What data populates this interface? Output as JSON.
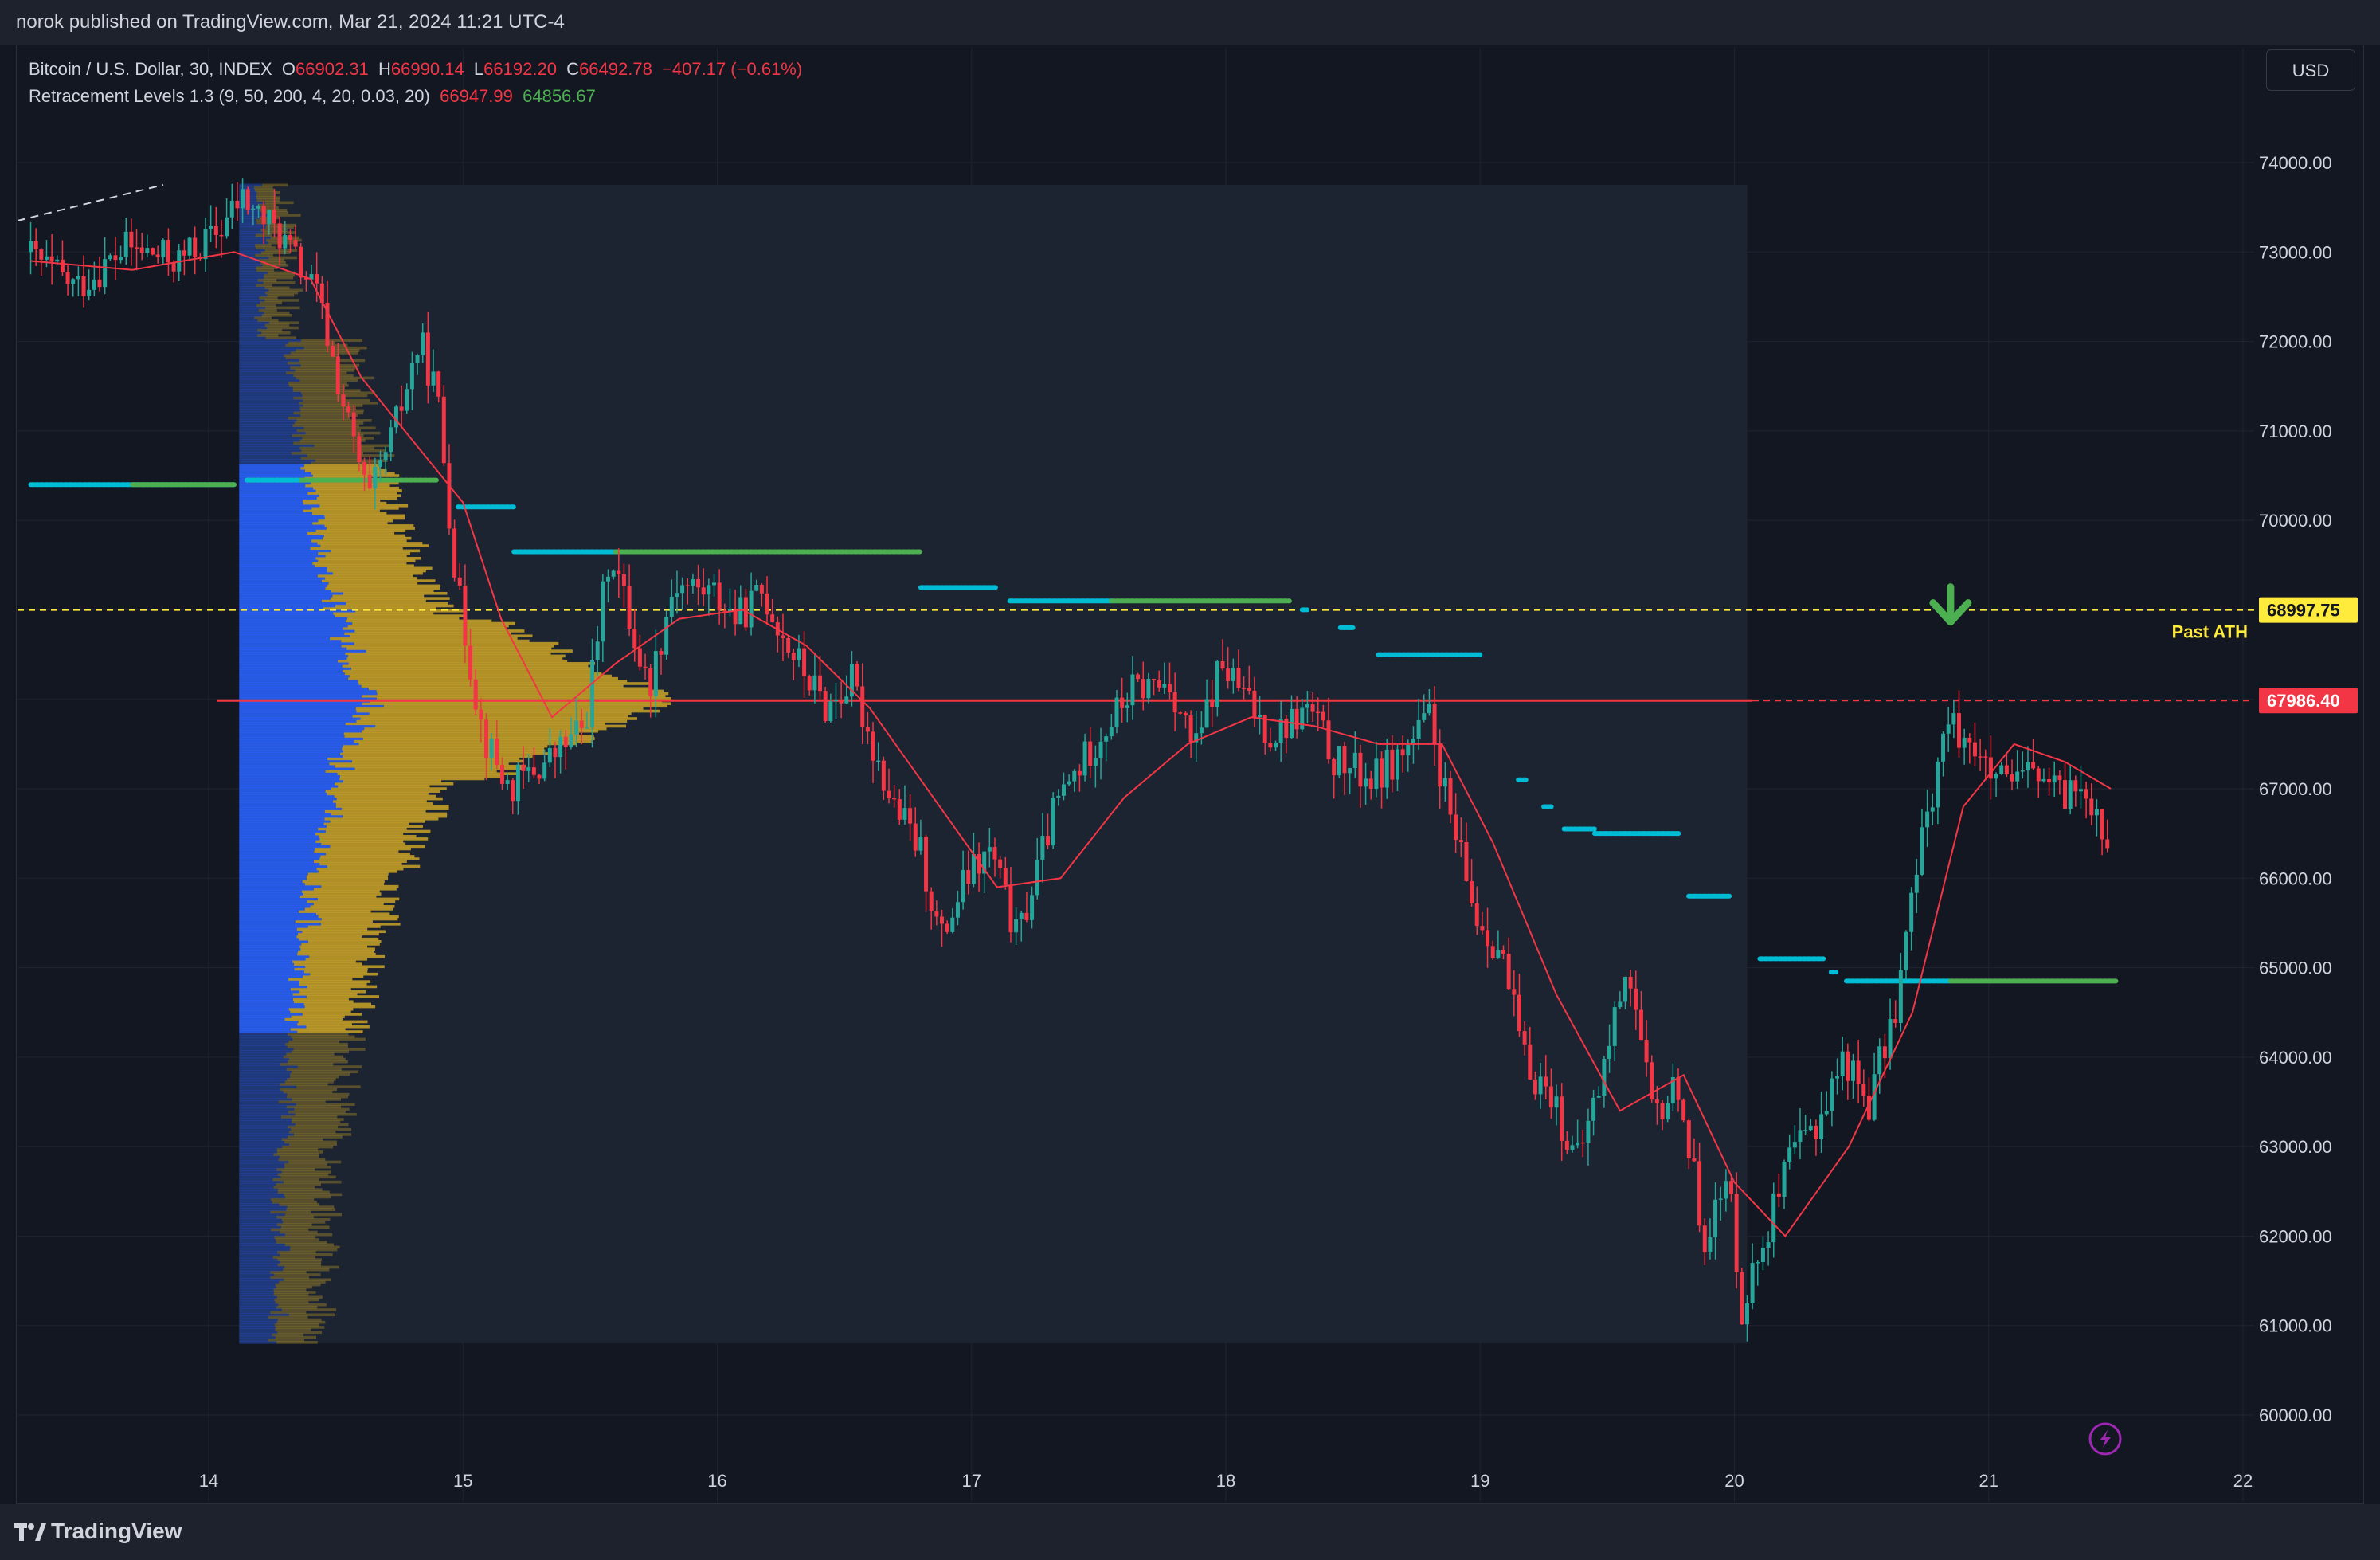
{
  "header": {
    "published": "norok published on TradingView.com, Mar 21, 2024 11:21 UTC-4"
  },
  "legend": {
    "symbol": "Bitcoin / U.S. Dollar, 30, INDEX",
    "o_label": "O",
    "o_value": "66902.31",
    "h_label": "H",
    "h_value": "66990.14",
    "l_label": "L",
    "l_value": "66192.20",
    "c_label": "C",
    "c_value": "66492.78",
    "change": "−407.17 (−0.61%)",
    "indicator": "Retracement Levels 1.3 (9, 50, 200, 4, 20, 0.03, 20)",
    "ind_value_1": "66947.99",
    "ind_value_2": "64856.67"
  },
  "currency_button": "USD",
  "footer": {
    "brand": "TradingView"
  },
  "colors": {
    "up": "#26a69a",
    "down": "#f23645",
    "ma": "#f23645",
    "profile_blue": "#2962ff",
    "profile_gold": "#c9a227",
    "dots_cyan": "#00bcd4",
    "dots_green": "#4caf50",
    "ath_line": "#ffeb3b",
    "arrow": "#4caf50"
  },
  "chart_data": {
    "type": "candlestick",
    "ylim": [
      59600,
      74800
    ],
    "xlim": [
      13.3,
      22.3
    ],
    "y_ticks": [
      "74000.00",
      "73000.00",
      "72000.00",
      "71000.00",
      "70000.00",
      "69000.00",
      "68000.00",
      "67000.00",
      "66000.00",
      "65000.00",
      "64000.00",
      "63000.00",
      "62000.00",
      "61000.00",
      "60000.00"
    ],
    "x_ticks": [
      "14",
      "15",
      "16",
      "17",
      "18",
      "19",
      "20",
      "21",
      "22"
    ],
    "price_path": [
      [
        13.3,
        73000
      ],
      [
        13.5,
        72600
      ],
      [
        13.7,
        73050
      ],
      [
        13.9,
        72900
      ],
      [
        14.05,
        73200
      ],
      [
        14.15,
        73600
      ],
      [
        14.3,
        73200
      ],
      [
        14.45,
        72500
      ],
      [
        14.55,
        71300
      ],
      [
        14.65,
        70200
      ],
      [
        14.75,
        71000
      ],
      [
        14.85,
        72000
      ],
      [
        14.92,
        71400
      ],
      [
        15.0,
        69200
      ],
      [
        15.1,
        67600
      ],
      [
        15.2,
        67000
      ],
      [
        15.35,
        67300
      ],
      [
        15.5,
        67700
      ],
      [
        15.6,
        69700
      ],
      [
        15.75,
        68100
      ],
      [
        15.85,
        69300
      ],
      [
        16.0,
        69200
      ],
      [
        16.1,
        68900
      ],
      [
        16.2,
        69200
      ],
      [
        16.3,
        68600
      ],
      [
        16.45,
        67900
      ],
      [
        16.55,
        68200
      ],
      [
        16.7,
        66900
      ],
      [
        16.82,
        66300
      ],
      [
        16.9,
        65300
      ],
      [
        17.0,
        66000
      ],
      [
        17.1,
        66300
      ],
      [
        17.2,
        65300
      ],
      [
        17.35,
        66800
      ],
      [
        17.5,
        67500
      ],
      [
        17.65,
        68100
      ],
      [
        17.8,
        68200
      ],
      [
        17.9,
        67400
      ],
      [
        18.0,
        68400
      ],
      [
        18.1,
        68000
      ],
      [
        18.2,
        67600
      ],
      [
        18.35,
        67900
      ],
      [
        18.45,
        67300
      ],
      [
        18.6,
        67100
      ],
      [
        18.75,
        67500
      ],
      [
        18.82,
        67800
      ],
      [
        18.9,
        66700
      ],
      [
        19.0,
        65600
      ],
      [
        19.1,
        65200
      ],
      [
        19.2,
        63900
      ],
      [
        19.3,
        63600
      ],
      [
        19.4,
        62800
      ],
      [
        19.5,
        63800
      ],
      [
        19.6,
        65100
      ],
      [
        19.7,
        63300
      ],
      [
        19.8,
        63700
      ],
      [
        19.9,
        62000
      ],
      [
        20.0,
        62600
      ],
      [
        20.05,
        61200
      ],
      [
        20.15,
        62100
      ],
      [
        20.25,
        62900
      ],
      [
        20.35,
        63300
      ],
      [
        20.45,
        64000
      ],
      [
        20.55,
        63500
      ],
      [
        20.65,
        64500
      ],
      [
        20.75,
        66300
      ],
      [
        20.85,
        67700
      ],
      [
        20.95,
        67600
      ],
      [
        21.0,
        67200
      ],
      [
        21.1,
        67000
      ],
      [
        21.2,
        67200
      ],
      [
        21.3,
        66900
      ],
      [
        21.4,
        67100
      ],
      [
        21.48,
        66500
      ]
    ],
    "ma_path": [
      [
        13.3,
        72900
      ],
      [
        13.7,
        72800
      ],
      [
        14.1,
        73000
      ],
      [
        14.4,
        72700
      ],
      [
        14.6,
        71600
      ],
      [
        14.8,
        70900
      ],
      [
        15.0,
        70200
      ],
      [
        15.15,
        68900
      ],
      [
        15.35,
        67800
      ],
      [
        15.6,
        68400
      ],
      [
        15.85,
        68900
      ],
      [
        16.1,
        69000
      ],
      [
        16.35,
        68600
      ],
      [
        16.6,
        67900
      ],
      [
        16.85,
        66900
      ],
      [
        17.1,
        65900
      ],
      [
        17.35,
        66000
      ],
      [
        17.6,
        66900
      ],
      [
        17.85,
        67500
      ],
      [
        18.1,
        67800
      ],
      [
        18.35,
        67700
      ],
      [
        18.6,
        67500
      ],
      [
        18.85,
        67500
      ],
      [
        19.05,
        66400
      ],
      [
        19.3,
        64700
      ],
      [
        19.55,
        63400
      ],
      [
        19.8,
        63800
      ],
      [
        20.0,
        62600
      ],
      [
        20.2,
        62000
      ],
      [
        20.45,
        63000
      ],
      [
        20.7,
        64500
      ],
      [
        20.9,
        66800
      ],
      [
        21.1,
        67500
      ],
      [
        21.3,
        67300
      ],
      [
        21.48,
        67000
      ]
    ],
    "levels": [
      {
        "price": 68997.75,
        "label": "68997.75",
        "annotation": "Past ATH"
      },
      {
        "price": 67986.4,
        "label": "67986.40"
      }
    ],
    "volume_profile": {
      "x_start": 14.12,
      "x_end": 20.05,
      "y_top": 73750,
      "y_bottom": 60800,
      "value_area_top": 70600,
      "value_area_bottom": 64250,
      "poc": 67986
    }
  }
}
